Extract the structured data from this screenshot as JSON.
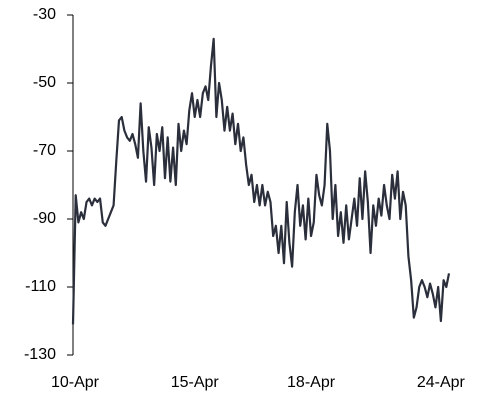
{
  "chart_data": {
    "type": "line",
    "categories": [
      "10-Apr",
      null,
      null,
      null,
      null,
      null,
      null,
      null,
      null,
      null,
      null,
      null,
      null,
      null,
      null,
      null,
      null,
      null,
      null,
      null,
      null,
      null,
      null,
      null,
      null,
      null,
      null,
      null,
      null,
      null,
      null,
      null,
      null,
      null,
      null,
      null,
      null,
      null,
      null,
      null,
      null,
      null,
      null,
      null,
      null,
      "15-Apr",
      null,
      null,
      null,
      null,
      null,
      null,
      null,
      null,
      null,
      null,
      null,
      null,
      null,
      null,
      null,
      null,
      null,
      null,
      null,
      null,
      null,
      null,
      null,
      null,
      null,
      null,
      null,
      null,
      null,
      null,
      null,
      null,
      null,
      null,
      null,
      null,
      null,
      null,
      null,
      null,
      null,
      null,
      "18-Apr",
      null,
      null,
      null,
      null,
      null,
      null,
      null,
      null,
      null,
      null,
      null,
      null,
      null,
      null,
      null,
      null,
      null,
      null,
      null,
      null,
      null,
      null,
      null,
      null,
      null,
      null,
      null,
      null,
      null,
      null,
      null,
      null,
      null,
      null,
      null,
      null,
      null,
      null,
      null,
      null,
      null,
      null,
      null,
      null,
      null,
      null,
      null,
      "24-Apr",
      null,
      null,
      null
    ],
    "series": [
      {
        "color": "#2b2f3b",
        "values": [
          -121,
          -83,
          -91,
          -88,
          -90,
          -85,
          -84,
          -86,
          -84,
          -85,
          -84,
          -91,
          -92,
          -90,
          -88,
          -86,
          -73,
          -61,
          -60,
          -64,
          -66,
          -67,
          -65,
          -68,
          -72,
          -56,
          -70,
          -79,
          -63,
          -69,
          -80,
          -65,
          -70,
          -63,
          -78,
          -66,
          -79,
          -69,
          -80,
          -62,
          -70,
          -64,
          -68,
          -58,
          -53,
          -60,
          -55,
          -60,
          -53,
          -51,
          -55,
          -45,
          -37,
          -60,
          -50,
          -55,
          -64,
          -57,
          -64,
          -59,
          -68,
          -62,
          -70,
          -66,
          -74,
          -80,
          -77,
          -85,
          -80,
          -86,
          -80,
          -86,
          -82,
          -85,
          -95,
          -92,
          -100,
          -92,
          -103,
          -85,
          -97,
          -104,
          -88,
          -80,
          -92,
          -86,
          -96,
          -84,
          -95,
          -91,
          -77,
          -83,
          -86,
          -80,
          -62,
          -70,
          -90,
          -80,
          -95,
          -88,
          -97,
          -86,
          -96,
          -90,
          -84,
          -92,
          -78,
          -90,
          -76,
          -85,
          -100,
          -86,
          -92,
          -84,
          -89,
          -80,
          -86,
          -90,
          -77,
          -84,
          -76,
          -90,
          -82,
          -86,
          -101,
          -108,
          -119,
          -116,
          -110,
          -108,
          -110,
          -113,
          -109,
          -112,
          -116,
          -110,
          -120,
          -108,
          -110,
          -106
        ]
      }
    ],
    "ylim": [
      -130,
      -30
    ],
    "yticks": [
      -130,
      -110,
      -90,
      -70,
      -50,
      -30
    ]
  }
}
